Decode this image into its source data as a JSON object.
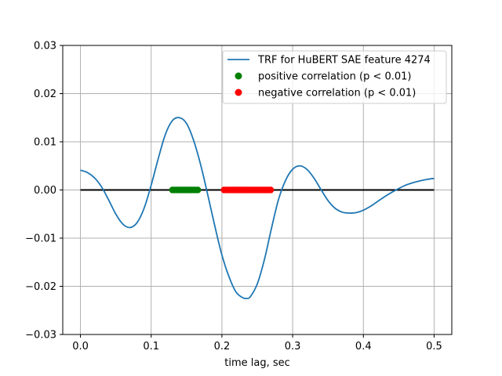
{
  "chart_data": {
    "type": "line",
    "title": "",
    "xlabel": "time lag, sec",
    "ylabel": "",
    "xlim": [
      -0.025,
      0.525
    ],
    "ylim": [
      -0.03,
      0.03
    ],
    "grid": true,
    "legend_placement": "top-right",
    "x_ticks": [
      0.0,
      0.1,
      0.2,
      0.3,
      0.4,
      0.5
    ],
    "x_tick_labels": [
      "0.0",
      "0.1",
      "0.2",
      "0.3",
      "0.4",
      "0.5"
    ],
    "y_ticks": [
      -0.03,
      -0.02,
      -0.01,
      0.0,
      0.01,
      0.02,
      0.03
    ],
    "y_tick_labels": [
      "−0.03",
      "−0.02",
      "−0.01",
      "0.00",
      "0.01",
      "0.02",
      "0.03"
    ],
    "zero_line": {
      "x_start": 0.0,
      "x_end": 0.5,
      "y": 0.0,
      "color": "#000000"
    },
    "series": [
      {
        "name": "TRF for HuBERT SAE feature 4274",
        "color": "#1f77b4",
        "x": [
          0.0,
          0.01,
          0.02,
          0.03,
          0.04,
          0.05,
          0.06,
          0.07,
          0.08,
          0.09,
          0.1,
          0.11,
          0.12,
          0.13,
          0.14,
          0.15,
          0.16,
          0.17,
          0.18,
          0.19,
          0.2,
          0.21,
          0.22,
          0.23,
          0.235,
          0.24,
          0.25,
          0.26,
          0.27,
          0.28,
          0.29,
          0.3,
          0.31,
          0.32,
          0.33,
          0.34,
          0.35,
          0.36,
          0.37,
          0.38,
          0.39,
          0.4,
          0.41,
          0.42,
          0.43,
          0.44,
          0.45,
          0.46,
          0.47,
          0.48,
          0.49,
          0.5
        ],
        "y": [
          0.0041,
          0.0036,
          0.0025,
          0.0006,
          -0.0021,
          -0.005,
          -0.0071,
          -0.0078,
          -0.0068,
          -0.0038,
          0.001,
          0.0065,
          0.0115,
          0.0144,
          0.015,
          0.0138,
          0.0103,
          0.0052,
          -0.001,
          -0.0075,
          -0.0135,
          -0.018,
          -0.0212,
          -0.0224,
          -0.0225,
          -0.0222,
          -0.0195,
          -0.0145,
          -0.008,
          -0.002,
          0.002,
          0.0043,
          0.005,
          0.0043,
          0.0025,
          0.0001,
          -0.0022,
          -0.0038,
          -0.0046,
          -0.0048,
          -0.0047,
          -0.0042,
          -0.0034,
          -0.0024,
          -0.0014,
          -0.0005,
          0.0003,
          0.001,
          0.0015,
          0.0019,
          0.0022,
          0.0024
        ]
      },
      {
        "name": "positive correlation (p < 0.01)",
        "color": "#008000",
        "marker": "circle",
        "x": [
          0.13,
          0.133,
          0.136,
          0.139,
          0.142,
          0.145,
          0.148,
          0.151,
          0.154,
          0.157,
          0.16,
          0.163,
          0.166
        ],
        "y": [
          0,
          0,
          0,
          0,
          0,
          0,
          0,
          0,
          0,
          0,
          0,
          0,
          0
        ]
      },
      {
        "name": "negative correlation (p < 0.01)",
        "color": "#ff0000",
        "marker": "circle",
        "x": [
          0.203,
          0.206,
          0.209,
          0.212,
          0.215,
          0.218,
          0.221,
          0.224,
          0.227,
          0.23,
          0.233,
          0.236,
          0.239,
          0.242,
          0.245,
          0.248,
          0.251,
          0.254,
          0.257,
          0.26,
          0.263,
          0.266,
          0.269
        ],
        "y": [
          0,
          0,
          0,
          0,
          0,
          0,
          0,
          0,
          0,
          0,
          0,
          0,
          0,
          0,
          0,
          0,
          0,
          0,
          0,
          0,
          0,
          0,
          0
        ]
      }
    ],
    "legend": [
      {
        "label": "TRF for HuBERT SAE feature 4274",
        "marker": "line",
        "color": "#1f77b4"
      },
      {
        "label": "positive correlation (p < 0.01)",
        "marker": "circle",
        "color": "#008000"
      },
      {
        "label": "negative correlation (p < 0.01)",
        "marker": "circle",
        "color": "#ff0000"
      }
    ],
    "grid_color": "#b0b0b0"
  }
}
